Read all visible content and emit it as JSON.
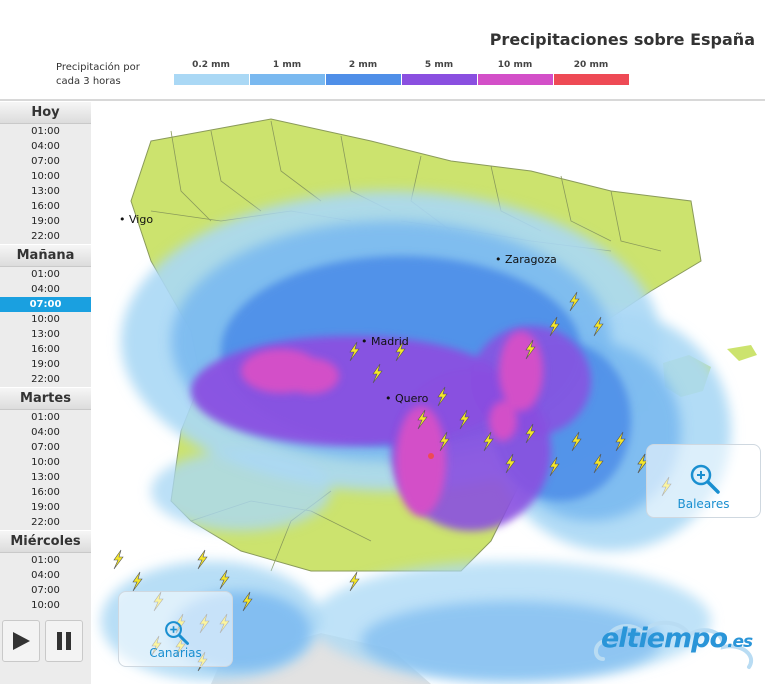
{
  "header": {
    "title": "Precipitaciones sobre España"
  },
  "legend": {
    "label": "Precipitación por cada 3 horas",
    "items": [
      {
        "label": "0.2 mm",
        "color": "#aad8f5"
      },
      {
        "label": "1 mm",
        "color": "#7ab9f0"
      },
      {
        "label": "2 mm",
        "color": "#4f8fe8"
      },
      {
        "label": "5 mm",
        "color": "#8a4fe0"
      },
      {
        "label": "10 mm",
        "color": "#d34fc8"
      },
      {
        "label": "20 mm",
        "color": "#ee4a55"
      }
    ]
  },
  "sidebar": {
    "days": [
      {
        "label": "Hoy",
        "hours": [
          "01:00",
          "04:00",
          "07:00",
          "10:00",
          "13:00",
          "16:00",
          "19:00",
          "22:00"
        ]
      },
      {
        "label": "Mañana",
        "hours": [
          "01:00",
          "04:00",
          "07:00",
          "10:00",
          "13:00",
          "16:00",
          "19:00",
          "22:00"
        ]
      },
      {
        "label": "Martes",
        "hours": [
          "01:00",
          "04:00",
          "07:00",
          "10:00",
          "13:00",
          "16:00",
          "19:00",
          "22:00"
        ]
      },
      {
        "label": "Miércoles",
        "hours": [
          "01:00",
          "04:00",
          "07:00",
          "10:00"
        ]
      }
    ],
    "active": {
      "day": 1,
      "hour": 2
    }
  },
  "controls": {
    "play_icon": "play-icon",
    "pause_icon": "pause-icon"
  },
  "map": {
    "cities": [
      "Vigo",
      "Zaragoza",
      "Madrid",
      "Quero"
    ],
    "zoom_labels": {
      "baleares": "Baleares",
      "canarias": "Canarias"
    },
    "colors": {
      "land": "#cce36e",
      "sea": "#ffffff",
      "border": "#8a9a5a"
    }
  },
  "logo": {
    "text": "eltiempo",
    "suffix": ".es"
  }
}
